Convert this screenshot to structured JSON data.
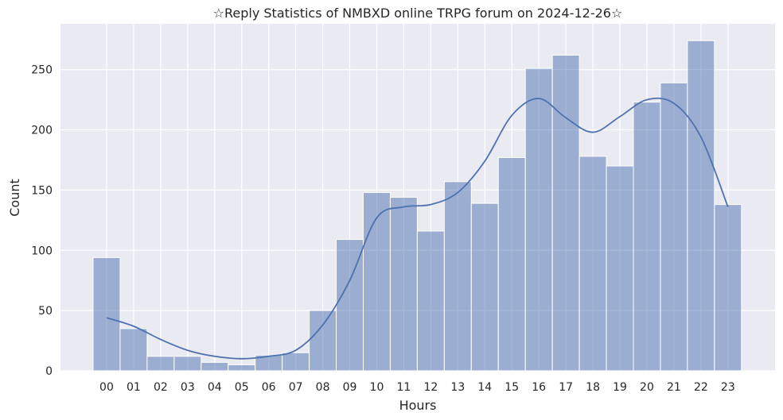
{
  "chart_data": {
    "type": "bar",
    "title": "☆Reply Statistics of NMBXD online TRPG forum on 2024-12-26☆",
    "xlabel": "Hours",
    "ylabel": "Count",
    "categories": [
      "00",
      "01",
      "02",
      "03",
      "04",
      "05",
      "06",
      "07",
      "08",
      "09",
      "10",
      "11",
      "12",
      "13",
      "14",
      "15",
      "16",
      "17",
      "18",
      "19",
      "20",
      "21",
      "22",
      "23"
    ],
    "values": [
      94,
      35,
      12,
      12,
      7,
      5,
      13,
      15,
      50,
      109,
      148,
      144,
      116,
      157,
      139,
      177,
      251,
      262,
      178,
      170,
      223,
      239,
      274,
      138
    ],
    "kde": [
      44,
      37,
      26,
      17,
      12,
      10,
      12,
      17,
      38,
      75,
      127,
      136,
      138,
      148,
      174,
      212,
      226,
      210,
      198,
      211,
      225,
      222,
      194,
      136
    ],
    "yticks": [
      0,
      50,
      100,
      150,
      200,
      250
    ],
    "ylim": [
      0,
      288
    ],
    "grid": true,
    "colors": {
      "bar": "#4c72b0",
      "line": "#4c72b0",
      "background": "#eaeaf2"
    }
  }
}
